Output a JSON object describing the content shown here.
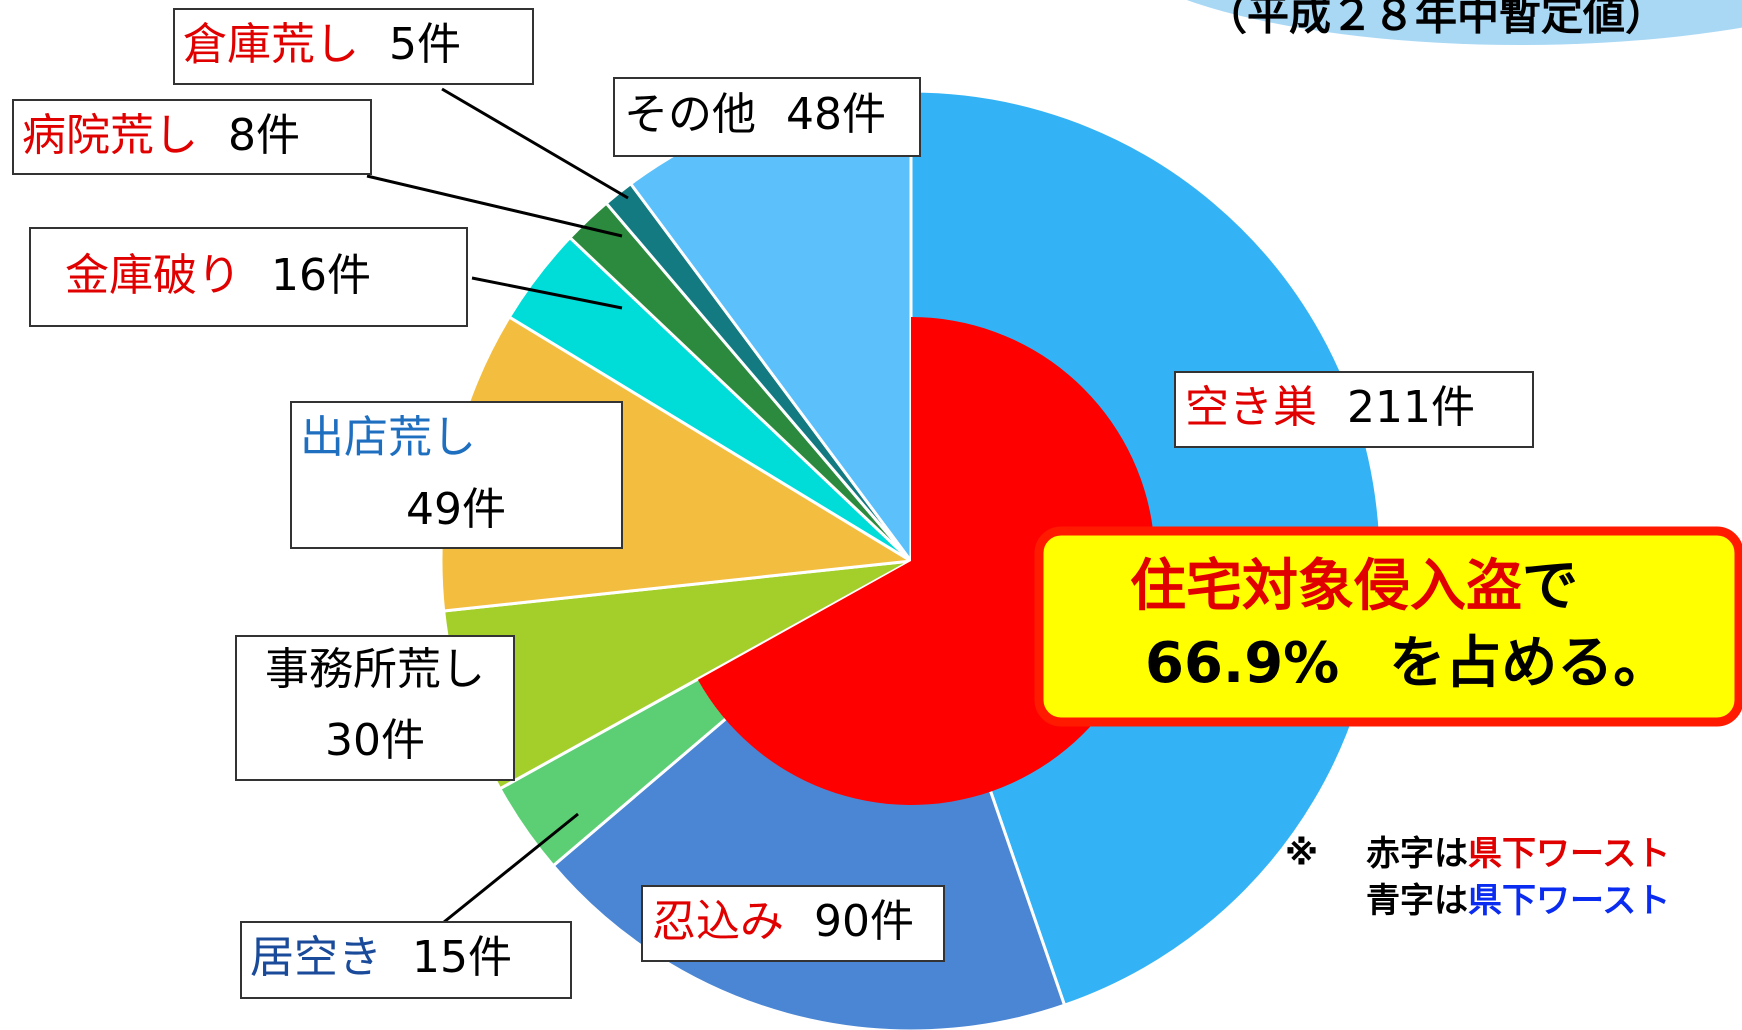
{
  "chart_data": {
    "type": "pie",
    "title": "（平成２８年中暫定値）",
    "categories": [
      "空き巣",
      "忍込み",
      "居空き",
      "事務所荒し",
      "出店荒し",
      "金庫破り",
      "病院荒し",
      "倉庫荒し",
      "その他"
    ],
    "values": [
      211,
      90,
      15,
      30,
      49,
      16,
      8,
      5,
      48
    ],
    "value_labels": [
      "211件",
      "90件",
      "15件",
      "30件",
      "49件",
      "16件",
      "8件",
      "5件",
      "48件"
    ],
    "colors": [
      "#33b3f5",
      "#4a86d4",
      "#5ccf75",
      "#a4cf2a",
      "#f3bd3f",
      "#00dcd8",
      "#2b8a3d",
      "#127a80",
      "#5cc0fa"
    ],
    "label_colors": [
      "#e00000",
      "#e00000",
      "#1a4a9a",
      "#000000",
      "#1f6fc0",
      "#e00000",
      "#e00000",
      "#e00000",
      "#000000"
    ],
    "annotation": {
      "line1_highlight": "住宅対象侵入盗",
      "line1_rest": "で",
      "value": 66.9,
      "value_label": "66.9%",
      "line2_rest": "を占める。",
      "color": "#ff0000"
    },
    "note": {
      "mark": "※",
      "line1_prefix": "赤字は",
      "line1_highlight": "県下ワースト",
      "line2_prefix": "青字は",
      "line2_highlight": "県下ワースト"
    }
  }
}
